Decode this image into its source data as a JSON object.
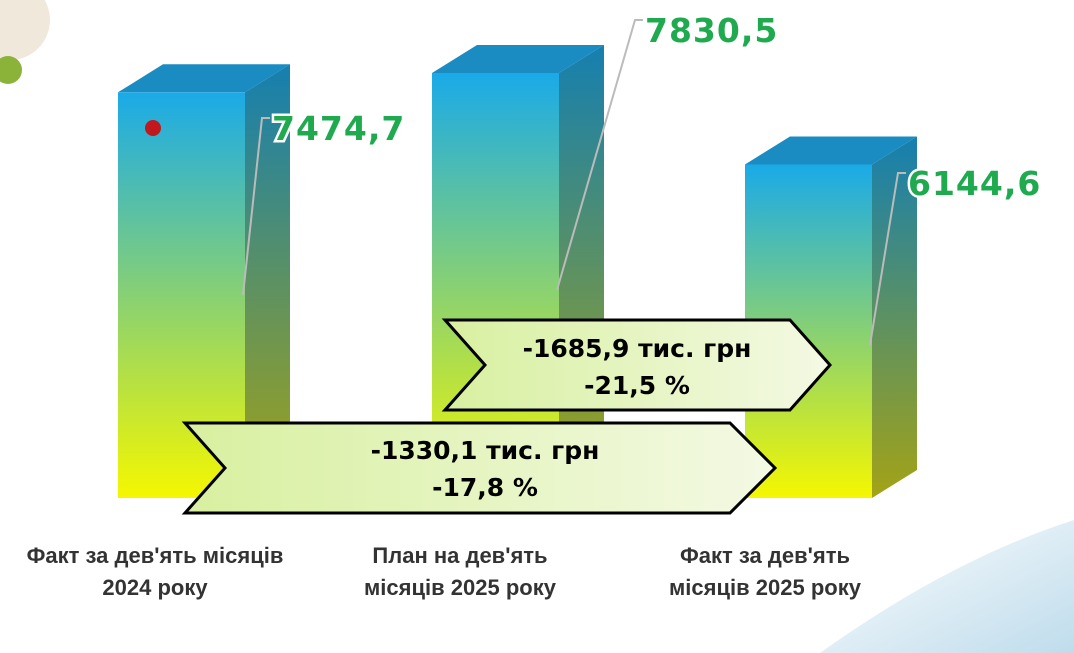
{
  "chart_data": {
    "type": "bar",
    "categories": [
      "Факт за дев'ять місяців 2024 року",
      "План на дев'ять місяців 2025 року",
      "Факт за дев'ять місяців  2025 року"
    ],
    "values": [
      7474.7,
      7830.5,
      6144.6
    ],
    "value_labels": [
      "7474,7",
      "7830,5",
      "6144,6"
    ],
    "gradient": [
      "#1aaae8",
      "#f5f700"
    ],
    "annotations": [
      {
        "lines": [
          "-1685,9 тис. грн",
          "-21,5 %"
        ]
      },
      {
        "lines": [
          "-1330,1 тис. грн",
          "-17,8 %"
        ]
      }
    ]
  }
}
